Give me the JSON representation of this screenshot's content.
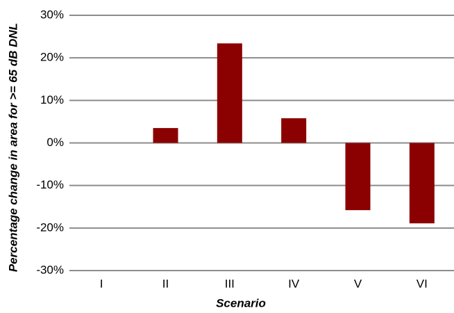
{
  "chart_data": {
    "type": "bar",
    "x_label": "Scenario",
    "y_label": "Percentage change in area for  >= 65 dB DNL",
    "categories": [
      "I",
      "II",
      "III",
      "IV",
      "V",
      "VI"
    ],
    "values": [
      0,
      3.5,
      23.4,
      5.8,
      -15.8,
      -18.9
    ],
    "color": "#8b0000",
    "ylim": [
      -30,
      30
    ],
    "yticks": [
      {
        "value": -30,
        "label": "-30%"
      },
      {
        "value": -20,
        "label": "-20%"
      },
      {
        "value": -10,
        "label": "-10%"
      },
      {
        "value": 0,
        "label": "0%"
      },
      {
        "value": 10,
        "label": "10%"
      },
      {
        "value": 20,
        "label": "20%"
      },
      {
        "value": 30,
        "label": "30%"
      }
    ],
    "grid": true
  }
}
